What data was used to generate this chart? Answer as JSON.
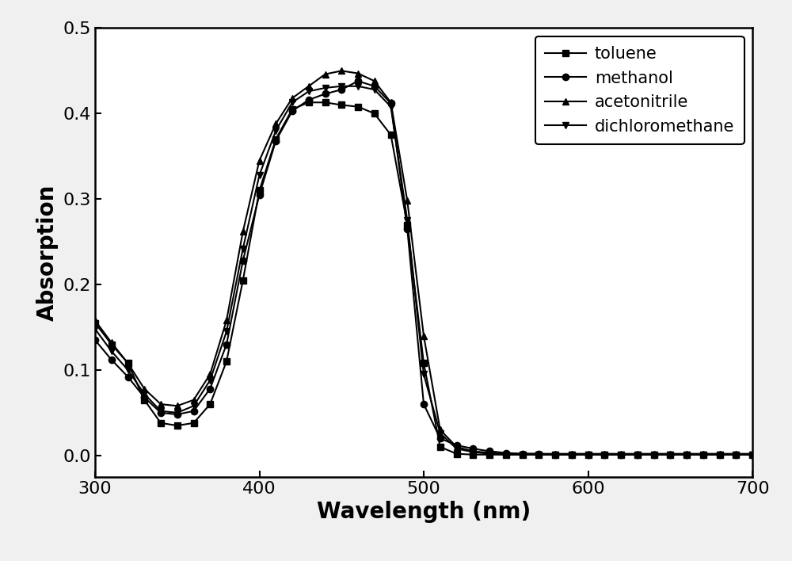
{
  "title": "",
  "xlabel": "Wavelength (nm)",
  "ylabel": "Absorption",
  "xlim": [
    300,
    700
  ],
  "ylim": [
    -0.025,
    0.5
  ],
  "yticks": [
    0.0,
    0.1,
    0.2,
    0.3,
    0.4,
    0.5
  ],
  "xticks": [
    300,
    400,
    500,
    600,
    700
  ],
  "background_color": "#ffffff",
  "series": {
    "toluene": {
      "marker": "s",
      "color": "#000000",
      "x": [
        300,
        310,
        320,
        330,
        340,
        350,
        360,
        370,
        380,
        390,
        400,
        410,
        420,
        430,
        440,
        450,
        460,
        470,
        480,
        490,
        500,
        510,
        520,
        530,
        540,
        550,
        560,
        570,
        580,
        590,
        600,
        610,
        620,
        630,
        640,
        650,
        660,
        670,
        680,
        690,
        700
      ],
      "y": [
        0.155,
        0.13,
        0.108,
        0.065,
        0.038,
        0.035,
        0.038,
        0.06,
        0.11,
        0.205,
        0.31,
        0.37,
        0.405,
        0.413,
        0.413,
        0.41,
        0.408,
        0.4,
        0.375,
        0.27,
        0.108,
        0.01,
        0.002,
        0.001,
        0.001,
        0.001,
        0.001,
        0.001,
        0.001,
        0.001,
        0.001,
        0.001,
        0.001,
        0.001,
        0.001,
        0.001,
        0.001,
        0.001,
        0.001,
        0.001,
        0.001
      ]
    },
    "methanol": {
      "marker": "o",
      "color": "#000000",
      "x": [
        300,
        310,
        320,
        330,
        340,
        350,
        360,
        370,
        380,
        390,
        400,
        410,
        420,
        430,
        440,
        450,
        460,
        470,
        480,
        490,
        500,
        510,
        520,
        530,
        540,
        550,
        560,
        570,
        580,
        590,
        600,
        610,
        620,
        630,
        640,
        650,
        660,
        670,
        680,
        690,
        700
      ],
      "y": [
        0.135,
        0.112,
        0.092,
        0.068,
        0.05,
        0.048,
        0.052,
        0.078,
        0.13,
        0.228,
        0.305,
        0.368,
        0.403,
        0.416,
        0.423,
        0.428,
        0.438,
        0.432,
        0.412,
        0.265,
        0.06,
        0.02,
        0.012,
        0.008,
        0.005,
        0.003,
        0.002,
        0.002,
        0.001,
        0.001,
        0.001,
        0.001,
        0.001,
        0.001,
        0.001,
        0.001,
        0.001,
        0.001,
        0.001,
        0.001,
        0.001
      ]
    },
    "acetonitrile": {
      "marker": "^",
      "color": "#000000",
      "x": [
        300,
        310,
        320,
        330,
        340,
        350,
        360,
        370,
        380,
        390,
        400,
        410,
        420,
        430,
        440,
        450,
        460,
        470,
        480,
        490,
        500,
        510,
        520,
        530,
        540,
        550,
        560,
        570,
        580,
        590,
        600,
        610,
        620,
        630,
        640,
        650,
        660,
        670,
        680,
        690,
        700
      ],
      "y": [
        0.158,
        0.132,
        0.108,
        0.078,
        0.06,
        0.058,
        0.065,
        0.095,
        0.158,
        0.262,
        0.345,
        0.388,
        0.418,
        0.432,
        0.446,
        0.45,
        0.447,
        0.438,
        0.413,
        0.298,
        0.14,
        0.03,
        0.01,
        0.005,
        0.003,
        0.002,
        0.002,
        0.002,
        0.002,
        0.002,
        0.002,
        0.002,
        0.002,
        0.002,
        0.002,
        0.002,
        0.002,
        0.002,
        0.002,
        0.002,
        0.002
      ]
    },
    "dichloromethane": {
      "marker": "v",
      "color": "#000000",
      "x": [
        300,
        310,
        320,
        330,
        340,
        350,
        360,
        370,
        380,
        390,
        400,
        410,
        420,
        430,
        440,
        450,
        460,
        470,
        480,
        490,
        500,
        510,
        520,
        530,
        540,
        550,
        560,
        570,
        580,
        590,
        600,
        610,
        620,
        630,
        640,
        650,
        660,
        670,
        680,
        690,
        700
      ],
      "y": [
        0.148,
        0.122,
        0.1,
        0.072,
        0.052,
        0.05,
        0.058,
        0.088,
        0.145,
        0.242,
        0.328,
        0.38,
        0.413,
        0.426,
        0.43,
        0.432,
        0.432,
        0.428,
        0.408,
        0.275,
        0.095,
        0.026,
        0.008,
        0.004,
        0.002,
        0.001,
        0.001,
        0.001,
        0.001,
        0.001,
        0.001,
        0.001,
        0.001,
        0.001,
        0.001,
        0.001,
        0.001,
        0.001,
        0.001,
        0.001,
        0.001
      ]
    }
  },
  "legend_order": [
    "toluene",
    "methanol",
    "acetonitrile",
    "dichloromethane"
  ],
  "markevery": 1,
  "linewidth": 1.5,
  "markersize": 6,
  "label_fontsize": 20,
  "tick_fontsize": 16,
  "legend_fontsize": 15
}
